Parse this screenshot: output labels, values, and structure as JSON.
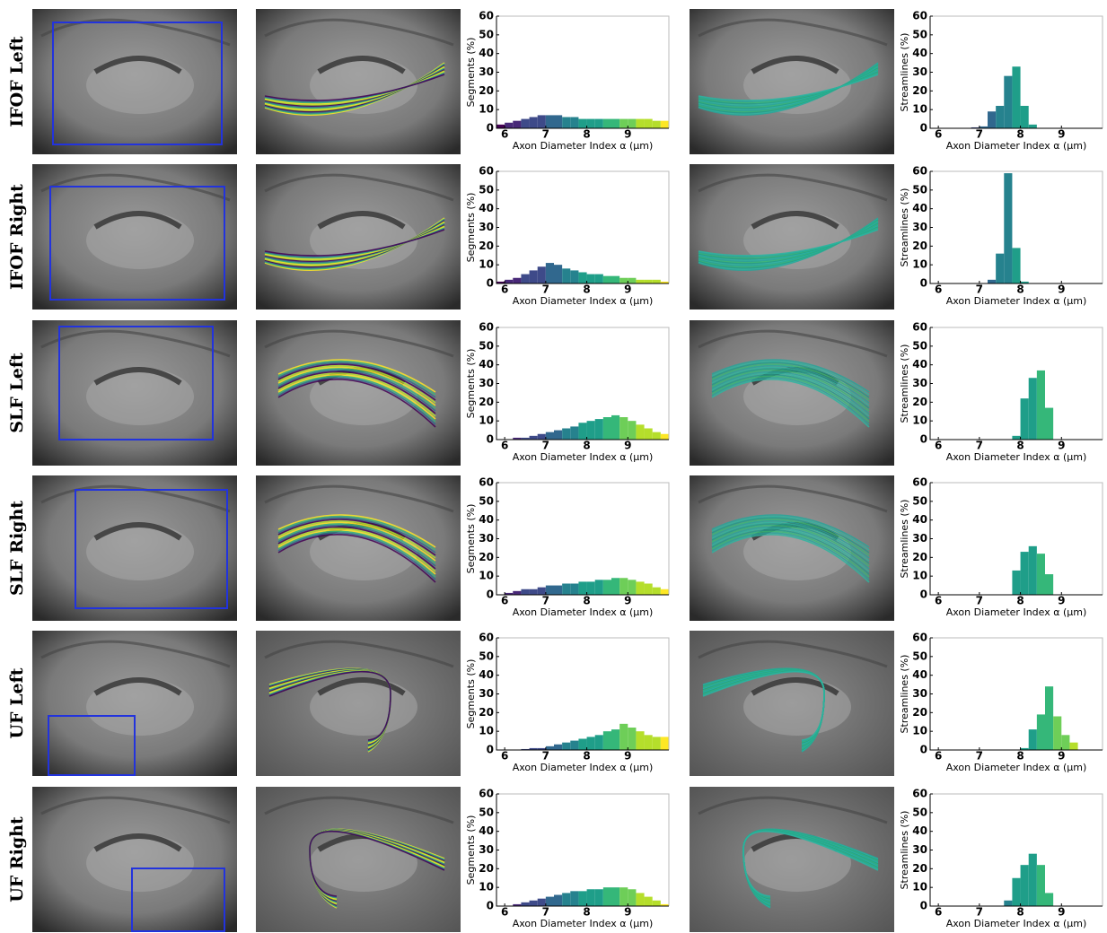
{
  "row_labels": [
    "IFOF Left",
    "IFOF Right",
    "SLF Left",
    "SLF Right",
    "UF Left",
    "UF Right"
  ],
  "chart_data": [
    {
      "type": "histogram",
      "ylabel": "Segments (%)",
      "xlabel": "Axon Diameter Index α (μm)",
      "bins": [
        5.8,
        6,
        6.2,
        6.4,
        6.6,
        6.8,
        7,
        7.2,
        7.4,
        7.6,
        7.8,
        8,
        8.2,
        8.4,
        8.6,
        8.8,
        9,
        9.2,
        9.4,
        9.6,
        9.8,
        10
      ],
      "values": [
        2,
        3,
        4,
        5,
        6,
        7,
        7,
        7,
        6,
        6,
        5,
        5,
        5,
        5,
        5,
        5,
        5,
        5,
        5,
        4,
        4
      ],
      "xlim": [
        5.8,
        10
      ],
      "ylim": [
        0,
        60
      ],
      "xticks": [
        6,
        7,
        8,
        9
      ],
      "yticks": [
        0,
        10,
        20,
        30,
        40,
        50,
        60
      ],
      "colormap": "viridis"
    },
    {
      "type": "histogram",
      "ylabel": "Streamlines (%)",
      "xlabel": "Axon Diameter Index α (μm)",
      "bins": [
        5.8,
        6,
        6.2,
        6.4,
        6.6,
        6.8,
        7,
        7.2,
        7.4,
        7.6,
        7.8,
        8,
        8.2,
        8.4,
        8.6,
        8.8,
        9,
        9.2,
        9.4,
        9.6,
        9.8,
        10
      ],
      "values": [
        0,
        0,
        0,
        0,
        0,
        0.5,
        1,
        9,
        12,
        28,
        33,
        12,
        2,
        0,
        0,
        0,
        0,
        0,
        0,
        0,
        0
      ],
      "xlim": [
        5.8,
        10
      ],
      "ylim": [
        0,
        60
      ],
      "xticks": [
        6,
        7,
        8,
        9
      ],
      "yticks": [
        0,
        10,
        20,
        30,
        40,
        50,
        60
      ],
      "colormap": "viridis"
    },
    {
      "type": "histogram",
      "ylabel": "Segments (%)",
      "xlabel": "Axon Diameter Index α (μm)",
      "bins": [
        5.8,
        6,
        6.2,
        6.4,
        6.6,
        6.8,
        7,
        7.2,
        7.4,
        7.6,
        7.8,
        8,
        8.2,
        8.4,
        8.6,
        8.8,
        9,
        9.2,
        9.4,
        9.6,
        9.8,
        10
      ],
      "values": [
        1,
        2,
        3,
        5,
        7,
        9,
        11,
        10,
        8,
        7,
        6,
        5,
        5,
        4,
        4,
        3,
        3,
        2,
        2,
        2,
        1
      ],
      "xlim": [
        5.8,
        10
      ],
      "ylim": [
        0,
        60
      ],
      "xticks": [
        6,
        7,
        8,
        9
      ],
      "yticks": [
        0,
        10,
        20,
        30,
        40,
        50,
        60
      ],
      "colormap": "viridis"
    },
    {
      "type": "histogram",
      "ylabel": "Streamlines (%)",
      "xlabel": "Axon Diameter Index α (μm)",
      "bins": [
        5.8,
        6,
        6.2,
        6.4,
        6.6,
        6.8,
        7,
        7.2,
        7.4,
        7.6,
        7.8,
        8,
        8.2,
        8.4,
        8.6,
        8.8,
        9,
        9.2,
        9.4,
        9.6,
        9.8,
        10
      ],
      "values": [
        0,
        0,
        0,
        0,
        0,
        0,
        0,
        2,
        16,
        59,
        19,
        1,
        0,
        0,
        0,
        0,
        0,
        0,
        0,
        0,
        0
      ],
      "xlim": [
        5.8,
        10
      ],
      "ylim": [
        0,
        60
      ],
      "xticks": [
        6,
        7,
        8,
        9
      ],
      "yticks": [
        0,
        10,
        20,
        30,
        40,
        50,
        60
      ],
      "colormap": "viridis"
    },
    {
      "type": "histogram",
      "ylabel": "Segments (%)",
      "xlabel": "Axon Diameter Index α (μm)",
      "bins": [
        5.8,
        6,
        6.2,
        6.4,
        6.6,
        6.8,
        7,
        7.2,
        7.4,
        7.6,
        7.8,
        8,
        8.2,
        8.4,
        8.6,
        8.8,
        9,
        9.2,
        9.4,
        9.6,
        9.8,
        10
      ],
      "values": [
        0,
        0,
        1,
        1,
        2,
        3,
        4,
        5,
        6,
        7,
        9,
        10,
        11,
        12,
        13,
        12,
        10,
        8,
        6,
        4,
        3
      ],
      "xlim": [
        5.8,
        10
      ],
      "ylim": [
        0,
        60
      ],
      "xticks": [
        6,
        7,
        8,
        9
      ],
      "yticks": [
        0,
        10,
        20,
        30,
        40,
        50,
        60
      ],
      "colormap": "viridis"
    },
    {
      "type": "histogram",
      "ylabel": "Streamlines (%)",
      "xlabel": "Axon Diameter Index α (μm)",
      "bins": [
        5.8,
        6,
        6.2,
        6.4,
        6.6,
        6.8,
        7,
        7.2,
        7.4,
        7.6,
        7.8,
        8,
        8.2,
        8.4,
        8.6,
        8.8,
        9,
        9.2,
        9.4,
        9.6,
        9.8,
        10
      ],
      "values": [
        0,
        0,
        0,
        0,
        0,
        0,
        0,
        0,
        0,
        0,
        2,
        22,
        33,
        37,
        17,
        0,
        0,
        0,
        0,
        0,
        0
      ],
      "xlim": [
        5.8,
        10
      ],
      "ylim": [
        0,
        60
      ],
      "xticks": [
        6,
        7,
        8,
        9
      ],
      "yticks": [
        0,
        10,
        20,
        30,
        40,
        50,
        60
      ],
      "colormap": "viridis"
    },
    {
      "type": "histogram",
      "ylabel": "Segments (%)",
      "xlabel": "Axon Diameter Index α (μm)",
      "bins": [
        5.8,
        6,
        6.2,
        6.4,
        6.6,
        6.8,
        7,
        7.2,
        7.4,
        7.6,
        7.8,
        8,
        8.2,
        8.4,
        8.6,
        8.8,
        9,
        9.2,
        9.4,
        9.6,
        9.8,
        10
      ],
      "values": [
        0,
        1,
        2,
        3,
        3,
        4,
        5,
        5,
        6,
        6,
        7,
        7,
        8,
        8,
        9,
        9,
        8,
        7,
        6,
        4,
        3
      ],
      "xlim": [
        5.8,
        10
      ],
      "ylim": [
        0,
        60
      ],
      "xticks": [
        6,
        7,
        8,
        9
      ],
      "yticks": [
        0,
        10,
        20,
        30,
        40,
        50,
        60
      ],
      "colormap": "viridis"
    },
    {
      "type": "histogram",
      "ylabel": "Streamlines (%)",
      "xlabel": "Axon Diameter Index α (μm)",
      "bins": [
        5.8,
        6,
        6.2,
        6.4,
        6.6,
        6.8,
        7,
        7.2,
        7.4,
        7.6,
        7.8,
        8,
        8.2,
        8.4,
        8.6,
        8.8,
        9,
        9.2,
        9.4,
        9.6,
        9.8,
        10
      ],
      "values": [
        0,
        0,
        0,
        0,
        0,
        0,
        0,
        0,
        0,
        0,
        13,
        23,
        26,
        22,
        11,
        0,
        0,
        0,
        0,
        0,
        0
      ],
      "xlim": [
        5.8,
        10
      ],
      "ylim": [
        0,
        60
      ],
      "xticks": [
        6,
        7,
        8,
        9
      ],
      "yticks": [
        0,
        10,
        20,
        30,
        40,
        50,
        60
      ],
      "colormap": "viridis"
    },
    {
      "type": "histogram",
      "ylabel": "Segments (%)",
      "xlabel": "Axon Diameter Index α (μm)",
      "bins": [
        5.8,
        6,
        6.2,
        6.4,
        6.6,
        6.8,
        7,
        7.2,
        7.4,
        7.6,
        7.8,
        8,
        8.2,
        8.4,
        8.6,
        8.8,
        9,
        9.2,
        9.4,
        9.6,
        9.8,
        10
      ],
      "values": [
        0,
        0,
        0,
        0.5,
        1,
        1,
        2,
        3,
        4,
        5,
        6,
        7,
        8,
        10,
        11,
        14,
        12,
        10,
        8,
        7,
        7
      ],
      "xlim": [
        5.8,
        10
      ],
      "ylim": [
        0,
        60
      ],
      "xticks": [
        6,
        7,
        8,
        9
      ],
      "yticks": [
        0,
        10,
        20,
        30,
        40,
        50,
        60
      ],
      "colormap": "viridis"
    },
    {
      "type": "histogram",
      "ylabel": "Streamlines (%)",
      "xlabel": "Axon Diameter Index α (μm)",
      "bins": [
        5.8,
        6,
        6.2,
        6.4,
        6.6,
        6.8,
        7,
        7.2,
        7.4,
        7.6,
        7.8,
        8,
        8.2,
        8.4,
        8.6,
        8.8,
        9,
        9.2,
        9.4,
        9.6,
        9.8,
        10
      ],
      "values": [
        0,
        0,
        0,
        0,
        0,
        0,
        0,
        0,
        0,
        0,
        0,
        1,
        11,
        19,
        34,
        18,
        8,
        4,
        0,
        0,
        0
      ],
      "xlim": [
        5.8,
        10
      ],
      "ylim": [
        0,
        60
      ],
      "xticks": [
        6,
        7,
        8,
        9
      ],
      "yticks": [
        0,
        10,
        20,
        30,
        40,
        50,
        60
      ],
      "colormap": "viridis"
    },
    {
      "type": "histogram",
      "ylabel": "Segments (%)",
      "xlabel": "Axon Diameter Index α (μm)",
      "bins": [
        5.8,
        6,
        6.2,
        6.4,
        6.6,
        6.8,
        7,
        7.2,
        7.4,
        7.6,
        7.8,
        8,
        8.2,
        8.4,
        8.6,
        8.8,
        9,
        9.2,
        9.4,
        9.6,
        9.8,
        10
      ],
      "values": [
        0,
        0,
        1,
        2,
        3,
        4,
        5,
        6,
        7,
        8,
        8,
        9,
        9,
        10,
        10,
        10,
        9,
        7,
        5,
        3,
        1
      ],
      "xlim": [
        5.8,
        10
      ],
      "ylim": [
        0,
        60
      ],
      "xticks": [
        6,
        7,
        8,
        9
      ],
      "yticks": [
        0,
        10,
        20,
        30,
        40,
        50,
        60
      ],
      "colormap": "viridis"
    },
    {
      "type": "histogram",
      "ylabel": "Streamlines (%)",
      "xlabel": "Axon Diameter Index α (μm)",
      "bins": [
        5.8,
        6,
        6.2,
        6.4,
        6.6,
        6.8,
        7,
        7.2,
        7.4,
        7.6,
        7.8,
        8,
        8.2,
        8.4,
        8.6,
        8.8,
        9,
        9.2,
        9.4,
        9.6,
        9.8,
        10
      ],
      "values": [
        0,
        0,
        0,
        0,
        0,
        0,
        0,
        0,
        0,
        3,
        15,
        22,
        28,
        22,
        7,
        0,
        0,
        0,
        0,
        0,
        0
      ],
      "xlim": [
        5.8,
        10
      ],
      "ylim": [
        0,
        60
      ],
      "xticks": [
        6,
        7,
        8,
        9
      ],
      "yticks": [
        0,
        10,
        20,
        30,
        40,
        50,
        60
      ],
      "colormap": "viridis"
    }
  ]
}
